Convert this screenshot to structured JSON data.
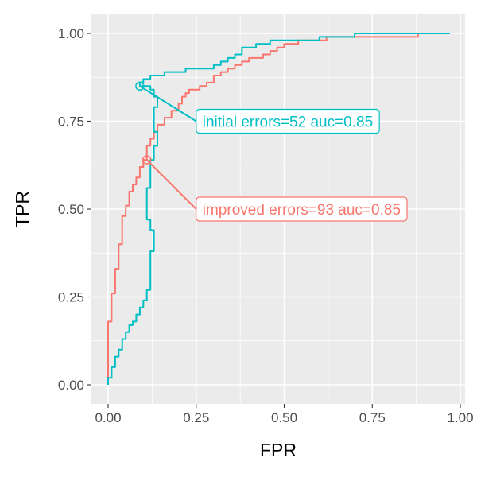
{
  "chart_data": {
    "type": "line",
    "xlabel": "FPR",
    "ylabel": "TPR",
    "xlim": [
      0,
      1
    ],
    "ylim": [
      0,
      1
    ],
    "x_ticks": [
      "0.00",
      "0.25",
      "0.50",
      "0.75",
      "1.00"
    ],
    "y_ticks": [
      "0.00",
      "0.25",
      "0.50",
      "0.75",
      "1.00"
    ],
    "grid": true,
    "legend": "none",
    "series": [
      {
        "key": "improved",
        "color": "#F8766D",
        "x": [
          0.0,
          0.0,
          0.01,
          0.01,
          0.02,
          0.02,
          0.03,
          0.03,
          0.04,
          0.04,
          0.05,
          0.05,
          0.06,
          0.06,
          0.07,
          0.08,
          0.09,
          0.1,
          0.11,
          0.11,
          0.12,
          0.13,
          0.14,
          0.16,
          0.18,
          0.2,
          0.21,
          0.22,
          0.23,
          0.24,
          0.26,
          0.28,
          0.3,
          0.32,
          0.34,
          0.36,
          0.38,
          0.4,
          0.42,
          0.44,
          0.46,
          0.48,
          0.5,
          0.52,
          0.54,
          0.56,
          0.6,
          0.62,
          0.66,
          0.7,
          0.74,
          0.78,
          0.82,
          0.84,
          0.86,
          0.88,
          0.88,
          0.97
        ],
        "y": [
          0.0,
          0.1,
          0.18,
          0.22,
          0.26,
          0.3,
          0.33,
          0.37,
          0.4,
          0.45,
          0.48,
          0.5,
          0.51,
          0.53,
          0.55,
          0.57,
          0.59,
          0.62,
          0.64,
          0.66,
          0.68,
          0.7,
          0.72,
          0.74,
          0.76,
          0.78,
          0.8,
          0.82,
          0.83,
          0.84,
          0.84,
          0.85,
          0.86,
          0.88,
          0.89,
          0.9,
          0.91,
          0.92,
          0.93,
          0.93,
          0.94,
          0.95,
          0.96,
          0.97,
          0.97,
          0.98,
          0.98,
          0.98,
          0.99,
          0.99,
          0.99,
          0.99,
          0.99,
          0.99,
          0.99,
          0.99,
          1.0,
          1.0
        ]
      },
      {
        "key": "initial",
        "color": "#00BFC4",
        "x": [
          0.0,
          0.01,
          0.02,
          0.03,
          0.04,
          0.05,
          0.06,
          0.07,
          0.08,
          0.09,
          0.1,
          0.11,
          0.12,
          0.12,
          0.13,
          0.13,
          0.12,
          0.11,
          0.11,
          0.11,
          0.12,
          0.12,
          0.13,
          0.14,
          0.13,
          0.13,
          0.14,
          0.13,
          0.12,
          0.11,
          0.09,
          0.1,
          0.12,
          0.14,
          0.16,
          0.18,
          0.2,
          0.22,
          0.25,
          0.28,
          0.3,
          0.32,
          0.34,
          0.36,
          0.38,
          0.4,
          0.42,
          0.44,
          0.46,
          0.5,
          0.55,
          0.6,
          0.7,
          0.8,
          0.9,
          0.97
        ],
        "y": [
          0.0,
          0.02,
          0.05,
          0.08,
          0.1,
          0.13,
          0.15,
          0.17,
          0.18,
          0.2,
          0.22,
          0.24,
          0.27,
          0.33,
          0.38,
          0.42,
          0.44,
          0.47,
          0.5,
          0.53,
          0.56,
          0.6,
          0.64,
          0.68,
          0.72,
          0.76,
          0.79,
          0.82,
          0.84,
          0.85,
          0.85,
          0.86,
          0.87,
          0.88,
          0.88,
          0.89,
          0.89,
          0.89,
          0.9,
          0.9,
          0.9,
          0.91,
          0.92,
          0.93,
          0.94,
          0.96,
          0.96,
          0.97,
          0.97,
          0.98,
          0.98,
          0.98,
          0.99,
          1.0,
          1.0,
          1.0
        ]
      }
    ],
    "annotations": [
      {
        "key": "initial",
        "text": "initial errors=52 auc=0.85",
        "color": "#00BFC4",
        "point": [
          0.09,
          0.85
        ],
        "label_at": [
          0.25,
          0.75
        ],
        "anchor": "left"
      },
      {
        "key": "improved",
        "text": "improved errors=93 auc=0.85",
        "color": "#F8766D",
        "point": [
          0.11,
          0.64
        ],
        "label_at": [
          0.25,
          0.5
        ],
        "anchor": "left"
      }
    ]
  }
}
